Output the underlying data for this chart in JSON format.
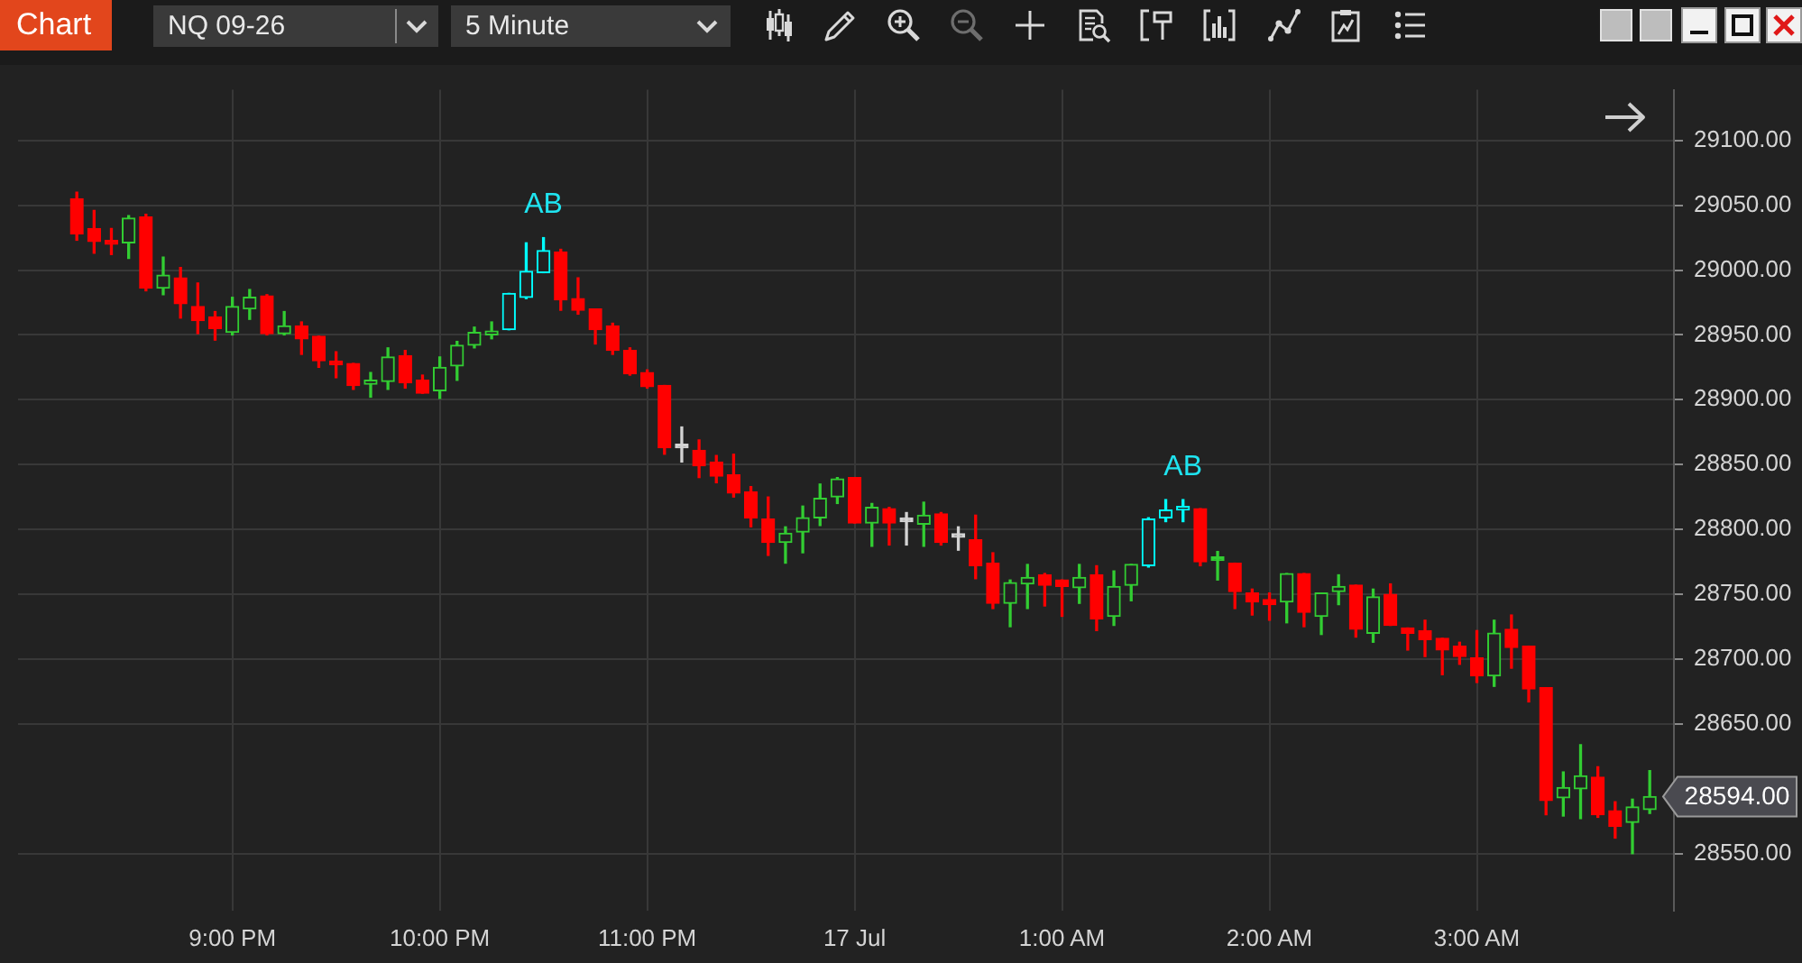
{
  "chart_data": {
    "type": "candlestick",
    "title": "NQ 09-26",
    "subtitle": "5 Minute",
    "x": [
      "--07-16T20:15",
      "--07-16T20:20",
      "--07-16T20:25",
      "--07-16T20:30",
      "--07-16T20:35",
      "--07-16T20:40",
      "--07-16T20:45",
      "--07-16T20:50",
      "--07-16T20:55",
      "--07-16T21:00",
      "--07-16T21:05",
      "--07-16T21:10",
      "--07-16T21:15",
      "--07-16T21:20",
      "--07-16T21:25",
      "--07-16T21:30",
      "--07-16T21:35",
      "--07-16T21:40",
      "--07-16T21:45",
      "--07-16T21:50",
      "--07-16T21:55",
      "--07-16T22:00",
      "--07-16T22:05",
      "--07-16T22:10",
      "--07-16T22:15",
      "--07-16T22:20",
      "--07-16T22:25",
      "--07-16T22:30",
      "--07-16T22:35",
      "--07-16T22:40",
      "--07-16T22:45",
      "--07-16T22:50",
      "--07-16T22:55",
      "--07-16T23:00",
      "--07-16T23:05",
      "--07-16T23:10",
      "--07-16T23:15",
      "--07-16T23:20",
      "--07-16T23:25",
      "--07-16T23:30",
      "--07-16T23:35",
      "--07-16T23:40",
      "--07-16T23:45",
      "--07-16T23:50",
      "--07-16T23:55",
      "--07-17T00:00",
      "--07-17T00:05",
      "--07-17T00:10",
      "--07-17T00:15",
      "--07-17T00:20",
      "--07-17T00:25",
      "--07-17T00:30",
      "--07-17T00:35",
      "--07-17T00:40",
      "--07-17T00:45",
      "--07-17T00:50",
      "--07-17T00:55",
      "--07-17T01:00",
      "--07-17T01:05",
      "--07-17T01:10",
      "--07-17T01:15",
      "--07-17T01:20",
      "--07-17T01:25",
      "--07-17T01:30",
      "--07-17T01:35",
      "--07-17T01:40",
      "--07-17T01:45",
      "--07-17T01:50",
      "--07-17T01:55",
      "--07-17T02:00",
      "--07-17T02:05",
      "--07-17T02:10",
      "--07-17T02:15",
      "--07-17T02:20",
      "--07-17T02:25",
      "--07-17T02:30",
      "--07-17T02:35",
      "--07-17T02:40",
      "--07-17T02:45",
      "--07-17T02:50",
      "--07-17T02:55",
      "--07-17T03:00",
      "--07-17T03:05",
      "--07-17T03:10",
      "--07-17T03:15",
      "--07-17T03:20",
      "--07-17T03:25",
      "--07-17T03:30",
      "--07-17T03:35",
      "--07-17T03:40",
      "--07-17T03:45",
      "--07-17T03:50"
    ],
    "ohlc": [
      [
        29055,
        29060,
        29023,
        29028
      ],
      [
        29032,
        29046,
        29013,
        29022
      ],
      [
        29022,
        29032,
        29012,
        29020
      ],
      [
        29021,
        29042,
        29009,
        29040
      ],
      [
        29041,
        29043,
        28984,
        28986
      ],
      [
        28986,
        29010,
        28981,
        28996
      ],
      [
        28994,
        29002,
        28963,
        28974
      ],
      [
        28972,
        28990,
        28951,
        28961
      ],
      [
        28964,
        28968,
        28946,
        28955
      ],
      [
        28952,
        28979,
        28950,
        28972
      ],
      [
        28970,
        28985,
        28962,
        28979
      ],
      [
        28980,
        28981,
        28950,
        28951
      ],
      [
        28951,
        28968,
        28950,
        28957
      ],
      [
        28957,
        28960,
        28935,
        28947
      ],
      [
        28949,
        28949,
        28925,
        28930
      ],
      [
        28929,
        28937,
        28917,
        28927
      ],
      [
        28928,
        28928,
        28908,
        28911
      ],
      [
        28912,
        28921,
        28902,
        28915
      ],
      [
        28914,
        28940,
        28908,
        28933
      ],
      [
        28934,
        28938,
        28909,
        28913
      ],
      [
        28915,
        28919,
        28905,
        28905
      ],
      [
        28907,
        28933,
        28901,
        28925
      ],
      [
        28926,
        28945,
        28915,
        28942
      ],
      [
        28942,
        28956,
        28940,
        28952
      ],
      [
        28950,
        28960,
        28947,
        28953
      ],
      [
        28954,
        28982,
        28954,
        28982
      ],
      [
        28979,
        29021,
        28978,
        28999
      ],
      [
        28998,
        29025,
        28998,
        29015
      ],
      [
        29014,
        29016,
        28969,
        28977
      ],
      [
        28978,
        28994,
        28966,
        28969
      ],
      [
        28970,
        28970,
        28943,
        28954
      ],
      [
        28957,
        28959,
        28935,
        28938
      ],
      [
        28938,
        28940,
        28919,
        28920
      ],
      [
        28921,
        28923,
        28909,
        28910
      ],
      [
        28911,
        28911,
        28858,
        28863
      ],
      [
        28863,
        28879,
        28852,
        28863
      ],
      [
        28861,
        28869,
        28840,
        28849
      ],
      [
        28852,
        28857,
        28836,
        28841
      ],
      [
        28842,
        28858,
        28825,
        28828
      ],
      [
        28829,
        28833,
        28802,
        28809
      ],
      [
        28808,
        28825,
        28780,
        28790
      ],
      [
        28790,
        28802,
        28774,
        28797
      ],
      [
        28798,
        28818,
        28782,
        28809
      ],
      [
        28809,
        28835,
        28803,
        28824
      ],
      [
        28825,
        28840,
        28820,
        28839
      ],
      [
        28840,
        28840,
        28805,
        28805
      ],
      [
        28805,
        28820,
        28787,
        28817
      ],
      [
        28816,
        28817,
        28788,
        28805
      ],
      [
        28806,
        28813,
        28788,
        28806
      ],
      [
        28804,
        28821,
        28787,
        28811
      ],
      [
        28812,
        28813,
        28788,
        28790
      ],
      [
        28794,
        28802,
        28784,
        28794
      ],
      [
        28792,
        28811,
        28762,
        28772
      ],
      [
        28774,
        28782,
        28739,
        28743
      ],
      [
        28743,
        28761,
        28725,
        28759
      ],
      [
        28758,
        28773,
        28739,
        28763
      ],
      [
        28765,
        28766,
        28741,
        28757
      ],
      [
        28761,
        28761,
        28733,
        28756
      ],
      [
        28755,
        28773,
        28743,
        28763
      ],
      [
        28765,
        28772,
        28722,
        28731
      ],
      [
        28733,
        28768,
        28726,
        28756
      ],
      [
        28757,
        28773,
        28745,
        28773
      ],
      [
        28772,
        28809,
        28771,
        28808
      ],
      [
        28809,
        28823,
        28806,
        28815
      ],
      [
        28815,
        28823,
        28806,
        28816
      ],
      [
        28816,
        28816,
        28772,
        28775
      ],
      [
        28776,
        28783,
        28761,
        28776
      ],
      [
        28774,
        28774,
        28739,
        28752
      ],
      [
        28751,
        28754,
        28734,
        28744
      ],
      [
        28746,
        28751,
        28730,
        28742
      ],
      [
        28744,
        28766,
        28728,
        28766
      ],
      [
        28766,
        28766,
        28725,
        28736
      ],
      [
        28733,
        28751,
        28719,
        28751
      ],
      [
        28752,
        28765,
        28742,
        28756
      ],
      [
        28757,
        28757,
        28717,
        28723
      ],
      [
        28720,
        28754,
        28713,
        28748
      ],
      [
        28750,
        28758,
        28726,
        28726
      ],
      [
        28724,
        28724,
        28707,
        28720
      ],
      [
        28722,
        28730,
        28702,
        28715
      ],
      [
        28716,
        28716,
        28688,
        28707
      ],
      [
        28710,
        28713,
        28696,
        28702
      ],
      [
        28701,
        28722,
        28682,
        28687
      ],
      [
        28687,
        28730,
        28679,
        28720
      ],
      [
        28723,
        28734,
        28693,
        28709
      ],
      [
        28710,
        28710,
        28667,
        28677
      ],
      [
        28678,
        28678,
        28580,
        28591
      ],
      [
        28593,
        28613,
        28579,
        28601
      ],
      [
        28600,
        28634,
        28577,
        28610
      ],
      [
        28609,
        28617,
        28578,
        28580
      ],
      [
        28583,
        28590,
        28562,
        28571
      ],
      [
        28574,
        28592,
        28550,
        28586
      ],
      [
        28584,
        28614,
        28581,
        28594
      ]
    ],
    "colors": [
      "#ff0000",
      "#ff0000",
      "#ff0000",
      "#32cd32",
      "#ff0000",
      "#32cd32",
      "#ff0000",
      "#ff0000",
      "#ff0000",
      "#32cd32",
      "#32cd32",
      "#ff0000",
      "#32cd32",
      "#ff0000",
      "#ff0000",
      "#ff0000",
      "#ff0000",
      "#32cd32",
      "#32cd32",
      "#ff0000",
      "#ff0000",
      "#32cd32",
      "#32cd32",
      "#32cd32",
      "#32cd32",
      "#00ffff",
      "#00ffff",
      "#00ffff",
      "#ff0000",
      "#ff0000",
      "#ff0000",
      "#ff0000",
      "#ff0000",
      "#ff0000",
      "#ff0000",
      "#d3d3d3",
      "#ff0000",
      "#ff0000",
      "#ff0000",
      "#ff0000",
      "#ff0000",
      "#32cd32",
      "#32cd32",
      "#32cd32",
      "#32cd32",
      "#ff0000",
      "#32cd32",
      "#ff0000",
      "#d3d3d3",
      "#32cd32",
      "#ff0000",
      "#d3d3d3",
      "#ff0000",
      "#ff0000",
      "#32cd32",
      "#32cd32",
      "#ff0000",
      "#ff0000",
      "#32cd32",
      "#ff0000",
      "#32cd32",
      "#32cd32",
      "#00ffff",
      "#00ffff",
      "#00ffff",
      "#ff0000",
      "#32cd32",
      "#ff0000",
      "#ff0000",
      "#ff0000",
      "#32cd32",
      "#ff0000",
      "#32cd32",
      "#32cd32",
      "#ff0000",
      "#32cd32",
      "#ff0000",
      "#ff0000",
      "#ff0000",
      "#ff0000",
      "#ff0000",
      "#ff0000",
      "#32cd32",
      "#ff0000",
      "#ff0000",
      "#ff0000",
      "#32cd32",
      "#32cd32",
      "#ff0000",
      "#ff0000",
      "#32cd32",
      "#32cd32"
    ],
    "xlim": [
      "--07-16T19:58",
      "--07-17T03:57"
    ],
    "xticks": [
      {
        "value": "--07-16T21:00",
        "label": "9:00 PM"
      },
      {
        "value": "--07-16T22:00",
        "label": "10:00 PM"
      },
      {
        "value": "--07-16T23:00",
        "label": "11:00 PM"
      },
      {
        "value": "--07-17T00:00",
        "label": "17 Jul"
      },
      {
        "value": "--07-17T01:00",
        "label": "1:00 AM"
      },
      {
        "value": "--07-17T02:00",
        "label": "2:00 AM"
      },
      {
        "value": "--07-17T03:00",
        "label": "3:00 AM"
      }
    ],
    "ylim": [
      28506,
      29139
    ],
    "yticks": [
      {
        "value": 28550,
        "label": "28550.00"
      },
      {
        "value": 28650,
        "label": "28650.00"
      },
      {
        "value": 28700,
        "label": "28700.00"
      },
      {
        "value": 28750,
        "label": "28750.00"
      },
      {
        "value": 28800,
        "label": "28800.00"
      },
      {
        "value": 28850,
        "label": "28850.00"
      },
      {
        "value": 28900,
        "label": "28900.00"
      },
      {
        "value": 28950,
        "label": "28950.00"
      },
      {
        "value": 29000,
        "label": "29000.00"
      },
      {
        "value": 29050,
        "label": "29050.00"
      },
      {
        "value": 29100,
        "label": "29100.00"
      }
    ],
    "grid": true,
    "annotations": [
      "Chart",
      {
        "text": "AB",
        "x": "--07-16T22:30",
        "y": 29025
      },
      {
        "text": "AB",
        "x": "--07-17T01:35",
        "y": 28823
      },
      {
        "text": "28594.00",
        "x": "--07-17T03:50",
        "y": 28594
      }
    ]
  }
}
